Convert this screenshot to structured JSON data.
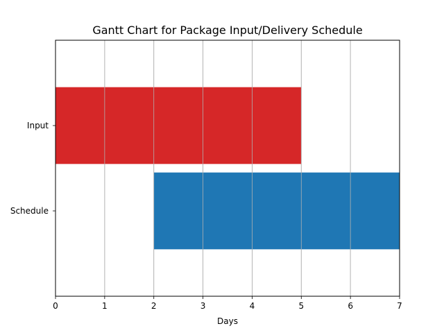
{
  "chart_data": {
    "type": "bar",
    "orientation": "horizontal",
    "title": "Gantt Chart for Package Input/Delivery Schedule",
    "xlabel": "Days",
    "ylabel": "",
    "xlim": [
      0,
      7
    ],
    "xticks": [
      0,
      1,
      2,
      3,
      4,
      5,
      6,
      7
    ],
    "ylim": [
      -0.5,
      2.5
    ],
    "categories": [
      "Input",
      "Schedule"
    ],
    "tasks": [
      {
        "label": "Input",
        "y": 1.5,
        "start": 0,
        "end": 5,
        "color": "#d62728"
      },
      {
        "label": "Schedule",
        "y": 0.5,
        "start": 2,
        "end": 7,
        "color": "#1f77b4"
      }
    ],
    "grid": {
      "x": true,
      "y": false
    },
    "legend": "none"
  }
}
